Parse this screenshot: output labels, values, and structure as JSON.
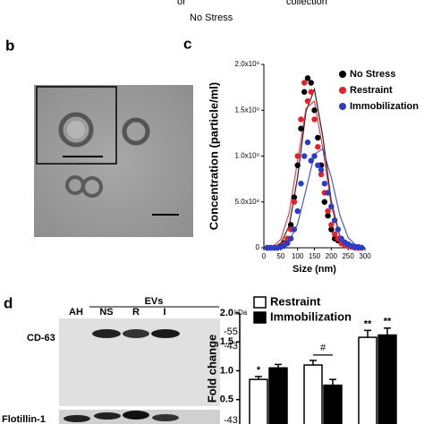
{
  "header_fragment": {
    "left": "or",
    "right": "collection",
    "below": "No Stress"
  },
  "panel_labels": {
    "b": "b",
    "c": "c",
    "d": "d"
  },
  "blot": {
    "group": "EVs",
    "unit": "kDa",
    "lanes": [
      "AH",
      "NS",
      "R",
      "I"
    ],
    "rows": [
      {
        "label": "CD-63",
        "markers": [
          "-55",
          "-43"
        ]
      },
      {
        "label": "Flotillin-1",
        "markers": [
          "-43"
        ]
      }
    ]
  },
  "chart_data": [
    {
      "type": "scatter",
      "xlabel": "Size (nm)",
      "ylabel": "Concentration (particle/ml)",
      "x": [
        10,
        20,
        30,
        40,
        50,
        60,
        70,
        80,
        90,
        100,
        110,
        120,
        130,
        140,
        150,
        160,
        170,
        180,
        190,
        200,
        210,
        220,
        230,
        240,
        250,
        260,
        270,
        280,
        290
      ],
      "series": [
        {
          "name": "No Stress",
          "color": "#000000",
          "values": [
            0,
            0,
            0,
            0,
            20000000.0,
            50000000.0,
            100000000.0,
            250000000.0,
            550000000.0,
            900000000.0,
            1300000000.0,
            1700000000.0,
            1850000000.0,
            1800000000.0,
            1500000000.0,
            1200000000.0,
            900000000.0,
            500000000.0,
            350000000.0,
            200000000.0,
            100000000.0,
            80000000.0,
            50000000.0,
            30000000.0,
            20000000.0,
            10000000.0,
            10000000.0,
            0,
            0
          ],
          "fit": {
            "x": [
              0,
              25,
              50,
              75,
              100,
              125,
              150,
              175,
              200,
              225,
              250,
              275,
              300
            ],
            "values": [
              0,
              2000000.0,
              44000000.0,
              240000000.0,
              770000000.0,
              1490000000.0,
              1730000000.0,
              1210000000.0,
              510000000.0,
              130000000.0,
              20000000.0,
              0,
              0
            ]
          }
        },
        {
          "name": "Restraint",
          "color": "#e8202a",
          "values": [
            0,
            0,
            0,
            0,
            10000000.0,
            40000000.0,
            100000000.0,
            200000000.0,
            500000000.0,
            1000000000.0,
            1400000000.0,
            1800000000.0,
            1600000000.0,
            1700000000.0,
            1400000000.0,
            1100000000.0,
            800000000.0,
            600000000.0,
            400000000.0,
            250000000.0,
            150000000.0,
            100000000.0,
            50000000.0,
            30000000.0,
            20000000.0,
            10000000.0,
            0,
            0,
            0
          ],
          "fit": {
            "x": [
              0,
              25,
              50,
              75,
              100,
              125,
              150,
              175,
              200,
              225,
              250,
              275,
              300
            ],
            "values": [
              0,
              6000000.0,
              90000000.0,
              380000000.0,
              950000000.0,
              1520000000.0,
              1600000000.0,
              1080000000.0,
              460000000.0,
              130000000.0,
              25000000.0,
              3000000.0,
              0
            ]
          }
        },
        {
          "name": "Immobilization",
          "color": "#2a3cc8",
          "values": [
            0,
            0,
            0,
            0,
            10000000.0,
            20000000.0,
            50000000.0,
            100000000.0,
            200000000.0,
            400000000.0,
            700000000.0,
            1000000000.0,
            1150000000.0,
            950000000.0,
            1000000000.0,
            900000000.0,
            850000000.0,
            700000000.0,
            600000000.0,
            450000000.0,
            300000000.0,
            200000000.0,
            100000000.0,
            60000000.0,
            40000000.0,
            20000000.0,
            10000000.0,
            10000000.0,
            0
          ],
          "fit": {
            "x": [
              0,
              25,
              50,
              75,
              100,
              125,
              150,
              175,
              200,
              225,
              250,
              275,
              300
            ],
            "values": [
              0,
              1000000.0,
              12000000.0,
              70000000.0,
              260000000.0,
              630000000.0,
              1020000000.0,
              1080000000.0,
              770000000.0,
              360000000.0,
              110000000.0,
              22000000.0,
              3000000.0
            ]
          }
        }
      ],
      "xlim": [
        0,
        300
      ],
      "xticks": [
        0,
        50,
        100,
        150,
        200,
        250,
        300
      ],
      "ylim": [
        0,
        2000000000.0
      ],
      "yticks": [
        0,
        {
          "value": 500000000.0,
          "label": "5.0x10⁸"
        },
        {
          "value": 1000000000.0,
          "label": "1.0x10⁹"
        },
        {
          "value": 1500000000.0,
          "label": "1.5x10⁹"
        },
        {
          "value": 2000000000.0,
          "label": "2.0x10⁹"
        }
      ],
      "legend": "upper right"
    },
    {
      "type": "bar",
      "ylabel": "Fold change",
      "categories": [
        null,
        null,
        null
      ],
      "series": [
        {
          "name": "Restraint",
          "color": "#ffffff",
          "values": [
            0.85,
            1.1,
            1.58
          ],
          "errors": [
            0.05,
            0.08,
            0.12
          ]
        },
        {
          "name": "Immobilization",
          "color": "#000000",
          "values": [
            1.05,
            0.75,
            1.62
          ],
          "errors": [
            0.06,
            0.1,
            0.12
          ]
        }
      ],
      "ylim": [
        0,
        2.0
      ],
      "yticks": [
        {
          "value": 0.5,
          "label": "0.5"
        },
        {
          "value": 1,
          "label": "1.0"
        },
        {
          "value": 1.5,
          "label": "1.5"
        },
        {
          "value": 2,
          "label": "2.0"
        }
      ],
      "annotations": [
        "*",
        "#",
        "**",
        "**"
      ],
      "legend": "upper left"
    }
  ]
}
